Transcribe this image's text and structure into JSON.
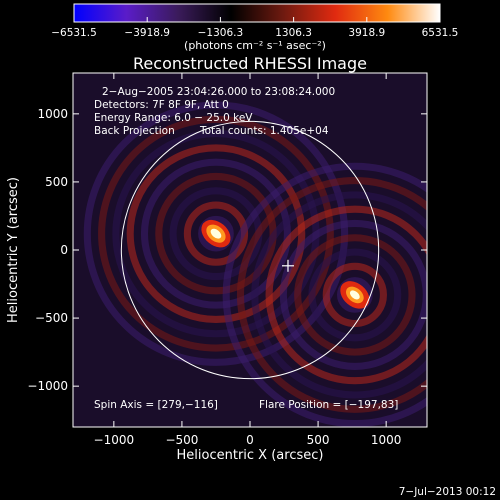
{
  "colorbar": {
    "ticks": [
      "−6531.5",
      "−3918.9",
      "−1306.3",
      "1306.3",
      "3918.9",
      "6531.5"
    ],
    "unit_label": "(photons cm⁻² s⁻¹ asec⁻²)",
    "colors": [
      "#0000ff",
      "#5a1cc8",
      "#3a1b5a",
      "#000000",
      "#6e1a10",
      "#e02a10",
      "#ff8a10",
      "#ffffff"
    ]
  },
  "chart_data": {
    "type": "heatmap",
    "title": "Reconstructed RHESSI Image",
    "xlabel": "Heliocentric X (arcsec)",
    "ylabel": "Heliocentric Y (arcsec)",
    "xlim": [
      -1300,
      1300
    ],
    "ylim": [
      -1300,
      1300
    ],
    "xticks": [
      -1000,
      -500,
      0,
      500,
      1000
    ],
    "yticks": [
      -1000,
      -500,
      0,
      500,
      1000
    ],
    "xtick_labels": [
      "−1000",
      "−500",
      "0",
      "500",
      "1000"
    ],
    "ytick_labels": [
      "−1000",
      "−500",
      "0",
      "500",
      "1000"
    ],
    "zlim": [
      -6531.5,
      6531.5
    ],
    "solar_disk": {
      "center": [
        0,
        0
      ],
      "radius": 945
    },
    "spin_axis": [
      279,
      -116
    ],
    "sources": [
      {
        "x": -250,
        "y": 120,
        "peak": 6531.5
      },
      {
        "x": 770,
        "y": -330,
        "peak": 6000
      }
    ],
    "info_lines": [
      "2−Aug−2005 23:04:26.000 to 23:08:24.000",
      "Detectors: 7F 8F 9F, Att 0",
      "Energy Range: 6.0 − 25.0 keV",
      "Back Projection"
    ],
    "total_counts": "Total counts: 1.405e+04",
    "spin_axis_label": "Spin Axis = [279,−116]",
    "flare_position_label": "Flare Position = [−197,83]"
  },
  "timestamp": "7−Jul−2013 00:12"
}
